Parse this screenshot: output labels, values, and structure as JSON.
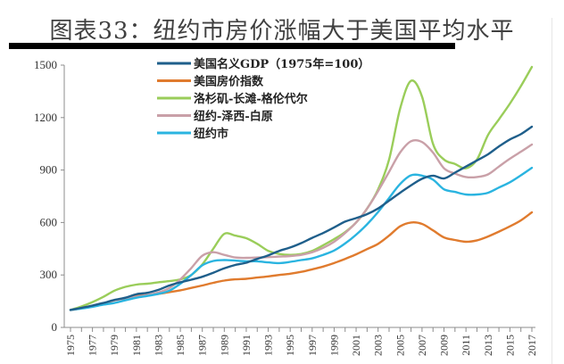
{
  "chart_data": {
    "type": "line",
    "title": "图表33：纽约市房价涨幅大于美国平均水平",
    "xlabel": "",
    "ylabel": "",
    "ylim": [
      0,
      1500
    ],
    "yticks": [
      0,
      300,
      600,
      900,
      1200,
      1500
    ],
    "xlim": [
      1975,
      2017
    ],
    "xticks": [
      1975,
      1977,
      1979,
      1981,
      1983,
      1985,
      1987,
      1989,
      1991,
      1993,
      1995,
      1997,
      1999,
      2001,
      2003,
      2005,
      2007,
      2009,
      2011,
      2013,
      2015,
      2017
    ],
    "grid": false,
    "legend_position": "top-left",
    "x": [
      1975,
      1976,
      1977,
      1978,
      1979,
      1980,
      1981,
      1982,
      1983,
      1984,
      1985,
      1986,
      1987,
      1988,
      1989,
      1990,
      1991,
      1992,
      1993,
      1994,
      1995,
      1996,
      1997,
      1998,
      1999,
      2000,
      2001,
      2002,
      2003,
      2004,
      2005,
      2006,
      2007,
      2008,
      2009,
      2010,
      2011,
      2012,
      2013,
      2014,
      2015,
      2016,
      2017
    ],
    "series": [
      {
        "name": "美国名义GDP（1975年=100）",
        "color": "#1f5f8b",
        "values": [
          100,
          112,
          125,
          140,
          157,
          170,
          190,
          198,
          215,
          240,
          258,
          273,
          290,
          313,
          338,
          357,
          370,
          392,
          412,
          438,
          457,
          482,
          512,
          540,
          572,
          605,
          625,
          648,
          680,
          725,
          770,
          812,
          850,
          868,
          852,
          885,
          920,
          955,
          990,
          1035,
          1075,
          1105,
          1148
        ]
      },
      {
        "name": "美国房价指数",
        "color": "#e07b2e",
        "values": [
          100,
          110,
          122,
          137,
          155,
          168,
          180,
          185,
          192,
          202,
          212,
          226,
          240,
          255,
          268,
          275,
          278,
          285,
          292,
          300,
          307,
          318,
          332,
          348,
          368,
          392,
          418,
          448,
          478,
          525,
          578,
          600,
          592,
          555,
          515,
          500,
          490,
          498,
          520,
          548,
          578,
          612,
          658
        ]
      },
      {
        "name": "洛杉矶-长滩-格伦代尔",
        "color": "#9acd5a",
        "values": [
          100,
          120,
          145,
          175,
          210,
          232,
          245,
          250,
          258,
          265,
          275,
          300,
          360,
          450,
          535,
          525,
          510,
          478,
          438,
          420,
          415,
          420,
          438,
          470,
          505,
          545,
          600,
          680,
          790,
          960,
          1250,
          1410,
          1320,
          1050,
          960,
          935,
          910,
          960,
          1100,
          1190,
          1280,
          1380,
          1490
        ]
      },
      {
        "name": "纽约-泽西-白原",
        "color": "#c9a0a8",
        "values": [
          100,
          110,
          125,
          140,
          155,
          165,
          175,
          185,
          200,
          225,
          275,
          340,
          410,
          430,
          415,
          400,
          398,
          400,
          402,
          405,
          408,
          415,
          430,
          455,
          490,
          540,
          600,
          680,
          780,
          890,
          1000,
          1065,
          1060,
          1000,
          910,
          880,
          860,
          860,
          875,
          920,
          965,
          1005,
          1046
        ]
      },
      {
        "name": "纽约市",
        "color": "#2ab4e0",
        "values": [
          100,
          108,
          118,
          130,
          140,
          155,
          170,
          180,
          192,
          210,
          250,
          300,
          355,
          380,
          385,
          382,
          378,
          378,
          372,
          368,
          375,
          385,
          395,
          415,
          440,
          480,
          530,
          590,
          660,
          740,
          820,
          870,
          868,
          845,
          790,
          775,
          760,
          760,
          770,
          800,
          830,
          870,
          913
        ]
      }
    ]
  }
}
